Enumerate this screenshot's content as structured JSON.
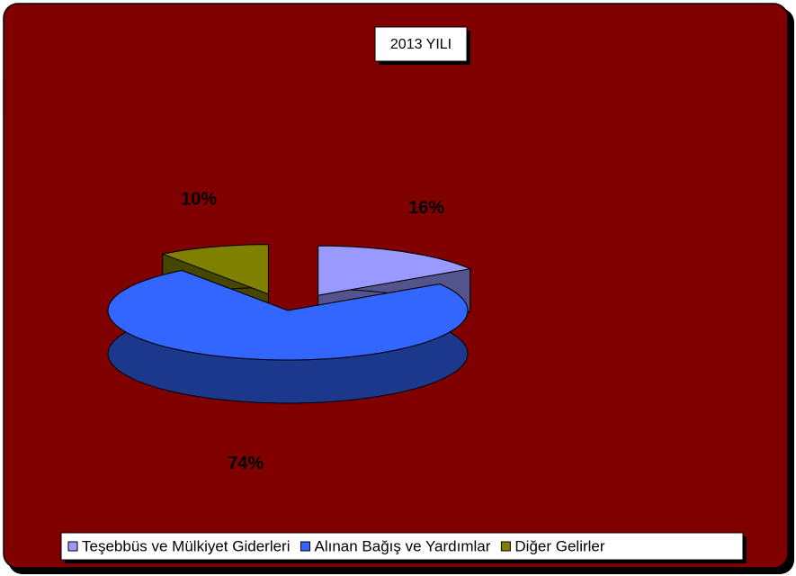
{
  "chart_data": {
    "type": "pie3d",
    "title": "2013 YILI",
    "categories": [
      "Teşebbüs ve Mülkiyet Giderleri",
      "Alınan Bağış ve Yardımlar",
      "Diğer Gelirler"
    ],
    "values": [
      16,
      74,
      10
    ],
    "value_labels": [
      "16%",
      "74%",
      "10%"
    ],
    "colors": [
      "#9999ff",
      "#3366ff",
      "#808000"
    ],
    "legend": "bottom"
  }
}
